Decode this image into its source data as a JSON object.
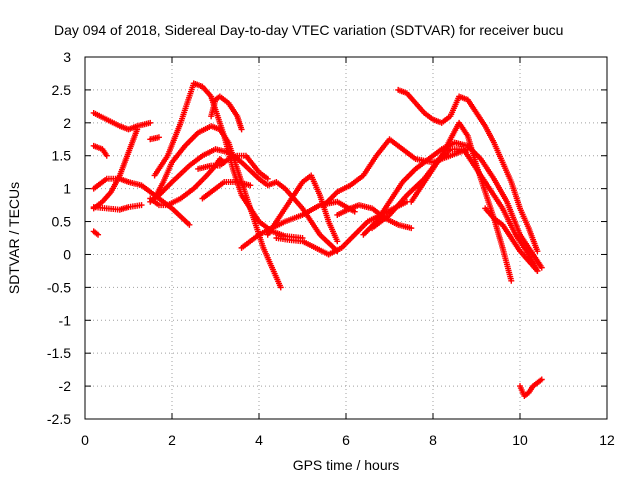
{
  "chart_data": {
    "type": "scatter",
    "title": "Day 094 of 2018, Sidereal Day-to-day VTEC variation (SDTVAR) for receiver bucu",
    "xlabel": "GPS time / hours",
    "ylabel": "SDTVAR / TECUs",
    "xlim": [
      0,
      12
    ],
    "ylim": [
      -2.5,
      3
    ],
    "xticks": [
      0,
      2,
      4,
      6,
      8,
      10,
      12
    ],
    "yticks": [
      -2.5,
      -2,
      -1.5,
      -1,
      -0.5,
      0,
      0.5,
      1,
      1.5,
      2,
      2.5,
      3
    ],
    "xtick_labels": [
      "0",
      "2",
      "4",
      "6",
      "8",
      "10",
      "12"
    ],
    "ytick_labels": [
      "-2.5",
      "-2",
      "-1.5",
      "-1",
      "-0.5",
      "0",
      "0.5",
      "1",
      "1.5",
      "2",
      "2.5",
      "3"
    ],
    "grid": true,
    "marker": "plus",
    "color": "#ff0000",
    "series": [
      {
        "x": [
          0.2,
          0.5,
          0.8,
          1.0,
          1.2,
          1.5
        ],
        "y": [
          2.15,
          2.05,
          1.95,
          1.9,
          1.95,
          2.0
        ]
      },
      {
        "x": [
          0.2,
          0.4,
          0.5
        ],
        "y": [
          1.65,
          1.6,
          1.5
        ]
      },
      {
        "x": [
          0.2,
          0.5,
          0.8,
          1.0,
          1.3,
          1.6,
          2.0,
          2.4
        ],
        "y": [
          1.0,
          1.15,
          1.15,
          1.1,
          1.05,
          0.9,
          0.7,
          0.45
        ]
      },
      {
        "x": [
          0.2,
          0.4,
          0.6,
          0.8,
          1.0,
          1.2
        ],
        "y": [
          0.7,
          0.8,
          0.95,
          1.2,
          1.55,
          1.9
        ]
      },
      {
        "x": [
          0.2,
          0.5,
          0.8,
          1.0,
          1.3
        ],
        "y": [
          0.72,
          0.7,
          0.68,
          0.72,
          0.75
        ]
      },
      {
        "x": [
          0.2,
          0.3
        ],
        "y": [
          0.35,
          0.3
        ]
      },
      {
        "x": [
          1.5,
          1.7
        ],
        "y": [
          1.75,
          1.78
        ]
      },
      {
        "x": [
          1.6,
          1.9,
          2.2,
          2.5,
          2.7,
          2.9,
          3.0,
          3.2,
          3.4,
          3.6,
          3.8,
          4.0,
          4.3,
          4.6,
          5.0
        ],
        "y": [
          1.2,
          1.5,
          2.0,
          2.6,
          2.55,
          2.4,
          2.2,
          1.8,
          1.3,
          0.9,
          0.7,
          0.5,
          0.35,
          0.28,
          0.25
        ]
      },
      {
        "x": [
          1.6,
          1.8,
          2.0,
          2.3,
          2.6,
          2.9,
          3.1,
          3.3,
          3.5,
          3.7,
          3.9,
          4.1,
          4.3,
          4.5
        ],
        "y": [
          0.85,
          1.1,
          1.4,
          1.65,
          1.85,
          1.95,
          1.9,
          1.7,
          1.3,
          0.9,
          0.5,
          0.1,
          -0.2,
          -0.5
        ]
      },
      {
        "x": [
          1.5,
          1.7,
          2.0,
          2.4,
          2.7,
          3.0,
          3.3,
          3.6,
          4.0,
          4.2,
          4.4,
          4.6,
          5.0,
          5.4,
          5.8
        ],
        "y": [
          0.8,
          0.9,
          1.1,
          1.35,
          1.5,
          1.6,
          1.55,
          1.4,
          1.15,
          1.05,
          1.1,
          1.0,
          0.7,
          0.3,
          0.05
        ]
      },
      {
        "x": [
          1.5,
          1.7,
          1.9,
          2.2,
          2.5,
          2.8,
          3.0,
          3.1,
          3.2
        ],
        "y": [
          0.85,
          0.75,
          0.75,
          0.85,
          1.0,
          1.2,
          1.35,
          1.45,
          1.4
        ]
      },
      {
        "x": [
          2.6,
          2.9,
          3.1,
          3.3,
          3.5,
          3.7,
          4.0,
          4.2
        ],
        "y": [
          1.3,
          1.35,
          1.35,
          1.45,
          1.5,
          1.5,
          1.25,
          1.15
        ]
      },
      {
        "x": [
          2.7,
          3.0,
          3.2,
          3.5,
          3.8
        ],
        "y": [
          0.85,
          1.0,
          1.1,
          1.1,
          1.05
        ]
      },
      {
        "x": [
          2.9,
          3.0,
          3.1,
          3.3,
          3.5,
          3.6
        ],
        "y": [
          2.1,
          2.35,
          2.4,
          2.3,
          2.1,
          1.9
        ]
      },
      {
        "x": [
          3.6,
          3.8,
          4.0,
          4.3,
          4.6,
          5.0,
          5.4,
          5.8,
          6.2
        ],
        "y": [
          0.1,
          0.2,
          0.3,
          0.4,
          0.5,
          0.6,
          0.75,
          0.8,
          0.65
        ]
      },
      {
        "x": [
          4.2,
          4.5,
          4.8,
          5.0,
          5.2,
          5.4,
          5.6,
          5.8
        ],
        "y": [
          0.3,
          0.6,
          0.9,
          1.1,
          1.2,
          0.9,
          0.5,
          0.2
        ]
      },
      {
        "x": [
          4.4,
          4.7,
          5.0,
          5.3,
          5.6
        ],
        "y": [
          0.25,
          0.22,
          0.2,
          0.1,
          0.0
        ]
      },
      {
        "x": [
          5.6,
          5.9,
          6.2,
          6.5,
          6.8,
          7.1,
          7.4
        ],
        "y": [
          0.0,
          0.1,
          0.3,
          0.5,
          0.6,
          0.7,
          0.8
        ]
      },
      {
        "x": [
          5.5,
          5.8,
          6.1,
          6.4,
          6.7,
          7.0,
          7.3,
          7.6,
          8.0,
          8.4,
          8.8
        ],
        "y": [
          0.75,
          0.95,
          1.05,
          1.2,
          1.5,
          1.75,
          1.6,
          1.45,
          1.4,
          1.5,
          1.6
        ]
      },
      {
        "x": [
          5.8,
          6.1,
          6.3,
          6.6,
          6.9,
          7.2,
          7.5
        ],
        "y": [
          0.6,
          0.7,
          0.75,
          0.7,
          0.55,
          0.45,
          0.4
        ]
      },
      {
        "x": [
          6.4,
          6.7,
          7.0,
          7.3,
          7.6,
          7.9,
          8.2,
          8.5,
          8.8,
          9.1,
          9.4,
          9.7,
          10.0,
          10.3,
          10.5
        ],
        "y": [
          0.3,
          0.5,
          0.8,
          1.1,
          1.3,
          1.45,
          1.6,
          1.7,
          1.65,
          1.45,
          1.15,
          0.8,
          0.3,
          0.0,
          -0.2
        ]
      },
      {
        "x": [
          7.2,
          7.4,
          7.6,
          7.8,
          8.0,
          8.2,
          8.4,
          8.6,
          8.8,
          9.0,
          9.2,
          9.4,
          9.6,
          9.8,
          10.0,
          10.2,
          10.4
        ],
        "y": [
          2.5,
          2.45,
          2.3,
          2.15,
          2.05,
          2.0,
          2.1,
          2.4,
          2.35,
          2.15,
          1.95,
          1.7,
          1.4,
          1.1,
          0.7,
          0.4,
          0.05
        ]
      },
      {
        "x": [
          6.6,
          7.0,
          7.4,
          7.8,
          8.2,
          8.4,
          8.6,
          8.8,
          9.0,
          9.2,
          9.4,
          9.6,
          9.8
        ],
        "y": [
          0.4,
          0.6,
          0.9,
          1.15,
          1.5,
          1.75,
          2.0,
          1.8,
          1.35,
          0.95,
          0.55,
          0.1,
          -0.4
        ]
      },
      {
        "x": [
          7.5,
          7.8,
          8.1,
          8.4,
          8.7,
          9.0,
          9.3,
          9.6,
          9.9,
          10.2,
          10.4
        ],
        "y": [
          0.8,
          1.1,
          1.4,
          1.6,
          1.6,
          1.3,
          1.0,
          0.7,
          0.3,
          0.0,
          -0.25
        ]
      },
      {
        "x": [
          9.2,
          9.4,
          9.6,
          9.8,
          10.0,
          10.2,
          10.4
        ],
        "y": [
          0.7,
          0.55,
          0.45,
          0.25,
          0.05,
          -0.1,
          -0.25
        ]
      },
      {
        "x": [
          10.0,
          10.1,
          10.2,
          10.3,
          10.4,
          10.5
        ],
        "y": [
          -2.0,
          -2.15,
          -2.1,
          -2.0,
          -1.95,
          -1.9
        ]
      }
    ]
  }
}
